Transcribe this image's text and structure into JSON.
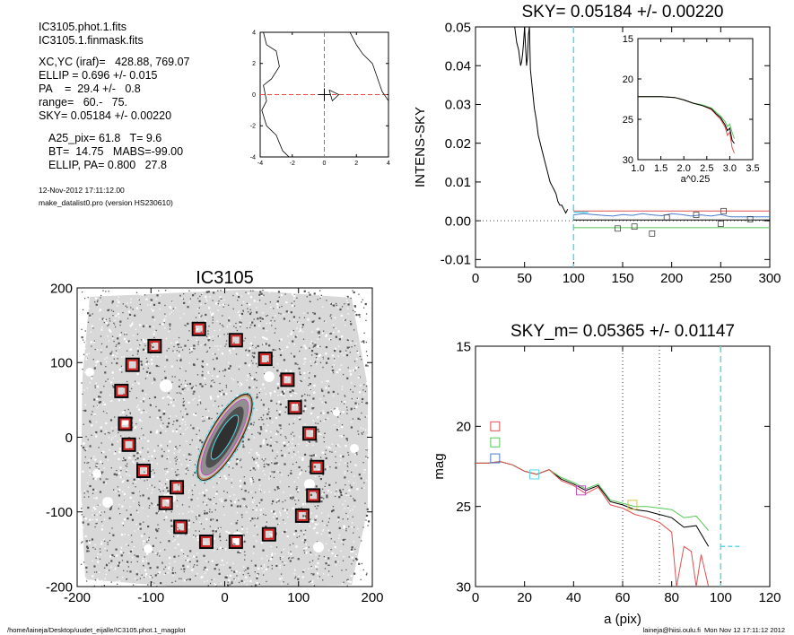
{
  "header": {
    "file1": "IC3105.phot.1.fits",
    "file2": "IC3105.1.finmask.fits",
    "xcyc": "XC,YC (iraf)=   428.88, 769.07",
    "ellip": "ELLIP = 0.696 +/- 0.015",
    "pa": "PA    =  29.4 +/-   0.8",
    "range": "range=   60.-   75.",
    "sky": "SKY= 0.05184 +/- 0.00220",
    "a25": "A25_pix= 61.8   T= 9.6",
    "bt": "BT=  14.75   MABS=-99.00",
    "ellip_pa": "ELLIP, PA= 0.800   27.8",
    "date": "12-Nov-2012 17:11:12.00",
    "program": "make_datalist0.pro (version HS230610)"
  },
  "footer": {
    "path": "/home/laineja/Desktop/uudet_eijalle/IC3105.phot.1_magplot",
    "user": "laineja@hiisi.oulu.fi  Mon Nov 12 17:11:12 2012"
  },
  "chart_data": [
    {
      "type": "line",
      "panel": "center-contour",
      "xlim": [
        -4,
        4
      ],
      "ylim": [
        -4,
        4
      ],
      "xticks": [
        "-4",
        "-2",
        "0",
        "2",
        "4"
      ],
      "yticks": [
        "-4",
        "-2",
        "0",
        "2",
        "4"
      ],
      "dashed_crosshair": {
        "x": 0,
        "y": 0,
        "color": "#e05050"
      },
      "contours": [
        [
          [
            -3.8,
            4.0
          ],
          [
            -3.6,
            3.2
          ],
          [
            -3.0,
            2.8
          ],
          [
            -2.8,
            1.8
          ],
          [
            -3.3,
            1.0
          ],
          [
            -3.8,
            0.6
          ],
          [
            -3.6,
            -0.4
          ],
          [
            -3.9,
            -1.0
          ],
          [
            -3.6,
            -2.0
          ],
          [
            -3.0,
            -2.6
          ],
          [
            -2.6,
            -3.6
          ],
          [
            -2.2,
            -4.0
          ]
        ],
        [
          [
            1.6,
            4.0
          ],
          [
            2.0,
            3.2
          ],
          [
            2.4,
            2.6
          ],
          [
            3.0,
            2.0
          ],
          [
            3.6,
            0.2
          ],
          [
            4.0,
            -0.4
          ]
        ],
        [
          [
            0.3,
            0.3
          ],
          [
            0.9,
            0.0
          ],
          [
            0.5,
            -0.4
          ],
          [
            0.3,
            0.3
          ]
        ]
      ]
    },
    {
      "type": "line",
      "panel": "sky-profile",
      "title": "SKY= 0.05184 +/- 0.00220",
      "ylabel": "INTENS-SKY",
      "xlim": [
        0,
        300
      ],
      "ylim": [
        -0.012,
        0.05
      ],
      "xticks": [
        "0",
        "50",
        "100",
        "150",
        "200",
        "250",
        "300"
      ],
      "yticks": [
        "-0.01",
        "0.00",
        "0.01",
        "0.02",
        "0.03",
        "0.04",
        "0.05"
      ],
      "vline": {
        "x": 100,
        "color": "#55d8e8"
      },
      "series": [
        {
          "color": "#000000",
          "x": [
            40,
            42,
            44,
            45,
            46,
            47,
            48,
            49,
            50,
            51,
            52,
            53,
            54,
            55,
            56,
            58,
            60,
            62,
            64,
            66,
            68,
            70,
            72,
            74,
            76,
            78,
            80,
            82,
            84,
            86,
            88,
            90,
            92,
            94
          ],
          "y": [
            0.05,
            0.046,
            0.044,
            0.042,
            0.04,
            0.041,
            0.043,
            0.046,
            0.05,
            0.045,
            0.04,
            0.042,
            0.048,
            0.05,
            0.039,
            0.034,
            0.029,
            0.026,
            0.022,
            0.02,
            0.018,
            0.016,
            0.014,
            0.012,
            0.01,
            0.009,
            0.008,
            0.007,
            0.005,
            0.004,
            0.004,
            0.003,
            0.002,
            0.003
          ]
        },
        {
          "color": "#e05050",
          "x": [
            100,
            300
          ],
          "y": [
            0.0025,
            0.0025
          ]
        },
        {
          "color": "#4a7bd0",
          "x": [
            100,
            110,
            120,
            130,
            140,
            150,
            160,
            170,
            180,
            190,
            200,
            210,
            220,
            230,
            240,
            250,
            260,
            270,
            280,
            290,
            300
          ],
          "y": [
            0.0015,
            0.0018,
            0.0016,
            0.0014,
            0.0012,
            0.0016,
            0.0014,
            0.0018,
            0.0015,
            0.0013,
            0.0018,
            0.0016,
            0.0012,
            0.0015,
            0.0012,
            0.0016,
            0.001,
            0.001,
            0.001,
            0.001,
            0.001
          ]
        },
        {
          "color": "#000000",
          "x": [
            100,
            300
          ],
          "y": [
            0.0002,
            0.0002
          ]
        },
        {
          "color": "#55c855",
          "x": [
            100,
            300
          ],
          "y": [
            -0.0018,
            -0.0018
          ]
        }
      ],
      "box_markers": {
        "x": [
          145,
          162,
          180,
          195,
          225,
          250,
          253,
          280
        ],
        "y": [
          -0.002,
          -0.0015,
          -0.0033,
          0.0008,
          0.0015,
          -0.0008,
          0.0025,
          0.0004
        ]
      },
      "inset": {
        "xlabel": "a^0.25",
        "xlim": [
          1.0,
          3.5
        ],
        "ylim": [
          30,
          15
        ],
        "xticks": [
          "1.0",
          "1.5",
          "2.0",
          "2.5",
          "3.0",
          "3.5"
        ],
        "yticks": [
          "15",
          "20",
          "25",
          "30"
        ],
        "series": [
          {
            "color": "#e05050",
            "x": [
              1.0,
              1.5,
              1.8,
              2.0,
              2.2,
              2.4,
              2.6,
              2.7,
              2.8,
              2.9,
              2.95,
              3.0,
              3.05,
              3.1
            ],
            "y": [
              22.2,
              22.2,
              22.3,
              22.6,
              23.0,
              23.3,
              23.8,
              24.4,
              25.0,
              26.0,
              27.0,
              26.6,
              28.5,
              29.2
            ]
          },
          {
            "color": "#55c855",
            "x": [
              1.0,
              1.5,
              1.8,
              2.0,
              2.2,
              2.4,
              2.6,
              2.7,
              2.8,
              2.9,
              2.95,
              3.0,
              3.05,
              3.1
            ],
            "y": [
              22.2,
              22.2,
              22.3,
              22.6,
              23.0,
              23.2,
              23.6,
              24.1,
              24.6,
              25.3,
              25.9,
              25.6,
              26.6,
              27.4
            ]
          },
          {
            "color": "#000000",
            "x": [
              1.0,
              1.5,
              1.8,
              2.0,
              2.2,
              2.4,
              2.6,
              2.7,
              2.8,
              2.9,
              2.95,
              3.0,
              3.05,
              3.1
            ],
            "y": [
              22.2,
              22.2,
              22.3,
              22.6,
              23.0,
              23.3,
              23.7,
              24.3,
              24.8,
              25.7,
              26.4,
              26.1,
              27.6,
              28.0
            ]
          }
        ]
      }
    },
    {
      "type": "scatter",
      "panel": "galaxy-image",
      "title": "IC3105",
      "xlim": [
        -200,
        200
      ],
      "ylim": [
        -200,
        200
      ],
      "xticks": [
        "-200",
        "-100",
        "0",
        "100",
        "200"
      ],
      "yticks": [
        "-200",
        "-100",
        "0",
        "100",
        "200"
      ],
      "galaxy": {
        "center": [
          0,
          0
        ],
        "major_axis": 62,
        "minor_axis": 19,
        "pa_deg": 29.4
      },
      "sky_boxes": {
        "x": [
          -35,
          15,
          55,
          85,
          95,
          115,
          125,
          120,
          105,
          60,
          15,
          -25,
          -60,
          -80,
          -110,
          -130,
          -135,
          -140,
          -125,
          -95,
          -65
        ],
        "y": [
          145,
          130,
          105,
          77,
          40,
          5,
          -40,
          -78,
          -105,
          -130,
          -140,
          -140,
          -120,
          -88,
          -45,
          -10,
          18,
          62,
          97,
          122,
          -67
        ]
      }
    },
    {
      "type": "line",
      "panel": "mag-profile",
      "title": "SKY_m=  0.05365 +/- 0.01147",
      "xlabel": "a (pix)",
      "ylabel": "mag",
      "xlim": [
        0,
        120
      ],
      "ylim": [
        30,
        15
      ],
      "xticks": [
        "0",
        "20",
        "40",
        "60",
        "80",
        "100",
        "120"
      ],
      "yticks": [
        "15",
        "20",
        "25",
        "30"
      ],
      "dotted_vlines": [
        60,
        75
      ],
      "cyan_vline": 100,
      "cyan_hseg": {
        "x": [
          100,
          108
        ],
        "y": 27.5
      },
      "series": [
        {
          "color": "#000000",
          "x": [
            0,
            5,
            10,
            15,
            20,
            25,
            30,
            35,
            40,
            45,
            50,
            55,
            60,
            65,
            70,
            75,
            80,
            85,
            90,
            95
          ],
          "y": [
            22.3,
            22.3,
            22.2,
            22.4,
            22.8,
            23.0,
            22.7,
            23.3,
            23.6,
            24.0,
            23.7,
            24.7,
            24.9,
            25.2,
            25.3,
            25.5,
            25.7,
            26.3,
            26.2,
            27.5
          ]
        },
        {
          "color": "#55c855",
          "x": [
            0,
            5,
            10,
            15,
            20,
            25,
            30,
            35,
            40,
            45,
            50,
            55,
            60,
            65,
            70,
            75,
            80,
            85,
            90,
            95
          ],
          "y": [
            22.3,
            22.3,
            22.2,
            22.4,
            22.8,
            23.0,
            22.7,
            23.2,
            23.5,
            23.9,
            23.6,
            24.6,
            24.8,
            25.0,
            25.0,
            25.1,
            25.2,
            25.7,
            25.6,
            26.5
          ]
        },
        {
          "color": "#e05050",
          "x": [
            0,
            5,
            10,
            15,
            20,
            25,
            30,
            35,
            40,
            45,
            50,
            55,
            60,
            65,
            70,
            75,
            80,
            82,
            85,
            88,
            90,
            92,
            95
          ],
          "y": [
            22.3,
            22.3,
            22.2,
            22.4,
            22.8,
            23.0,
            22.7,
            23.4,
            23.7,
            24.2,
            23.8,
            24.9,
            25.1,
            25.5,
            25.7,
            26.0,
            26.6,
            30.0,
            27.5,
            27.8,
            30.0,
            28.0,
            30.0
          ]
        }
      ],
      "markers": [
        {
          "x": 8,
          "y": 20.0,
          "color": "#e05050"
        },
        {
          "x": 8,
          "y": 21.0,
          "color": "#55c855"
        },
        {
          "x": 8,
          "y": 22.0,
          "color": "#4a7bd0"
        },
        {
          "x": 24,
          "y": 23.0,
          "color": "#55d8e8"
        },
        {
          "x": 43,
          "y": 24.0,
          "color": "#c050c0"
        },
        {
          "x": 64,
          "y": 24.9,
          "color": "#e0c040"
        }
      ]
    }
  ]
}
